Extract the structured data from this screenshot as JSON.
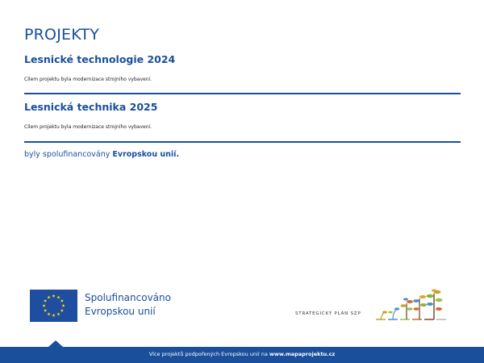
{
  "page": {
    "title": "PROJEKTY"
  },
  "projects": [
    {
      "name": "Lesnické technologie 2024",
      "description": "Cílem projektu byla modernizace strojního vybavení."
    },
    {
      "name": "Lesnická technika 2025",
      "description": "Cílem projektu byla modernizace strojního vybavení."
    }
  ],
  "cofinance": {
    "prefix": "byly spolufinancovány ",
    "emphasis": "Evropskou unií."
  },
  "eu_logo": {
    "line1": "Spolufinancováno",
    "line2": "Evropskou unií",
    "flag_color": "#1f4ea1",
    "star_color": "#ffdd00"
  },
  "szp_logo": {
    "label": "STRATEGICKÝ PLÁN SZP"
  },
  "footer": {
    "text_prefix": "Více projektů podpořených Evropskou unií na ",
    "link": "www.mapaprojektu.cz",
    "bar_color": "#1a4f9c"
  }
}
